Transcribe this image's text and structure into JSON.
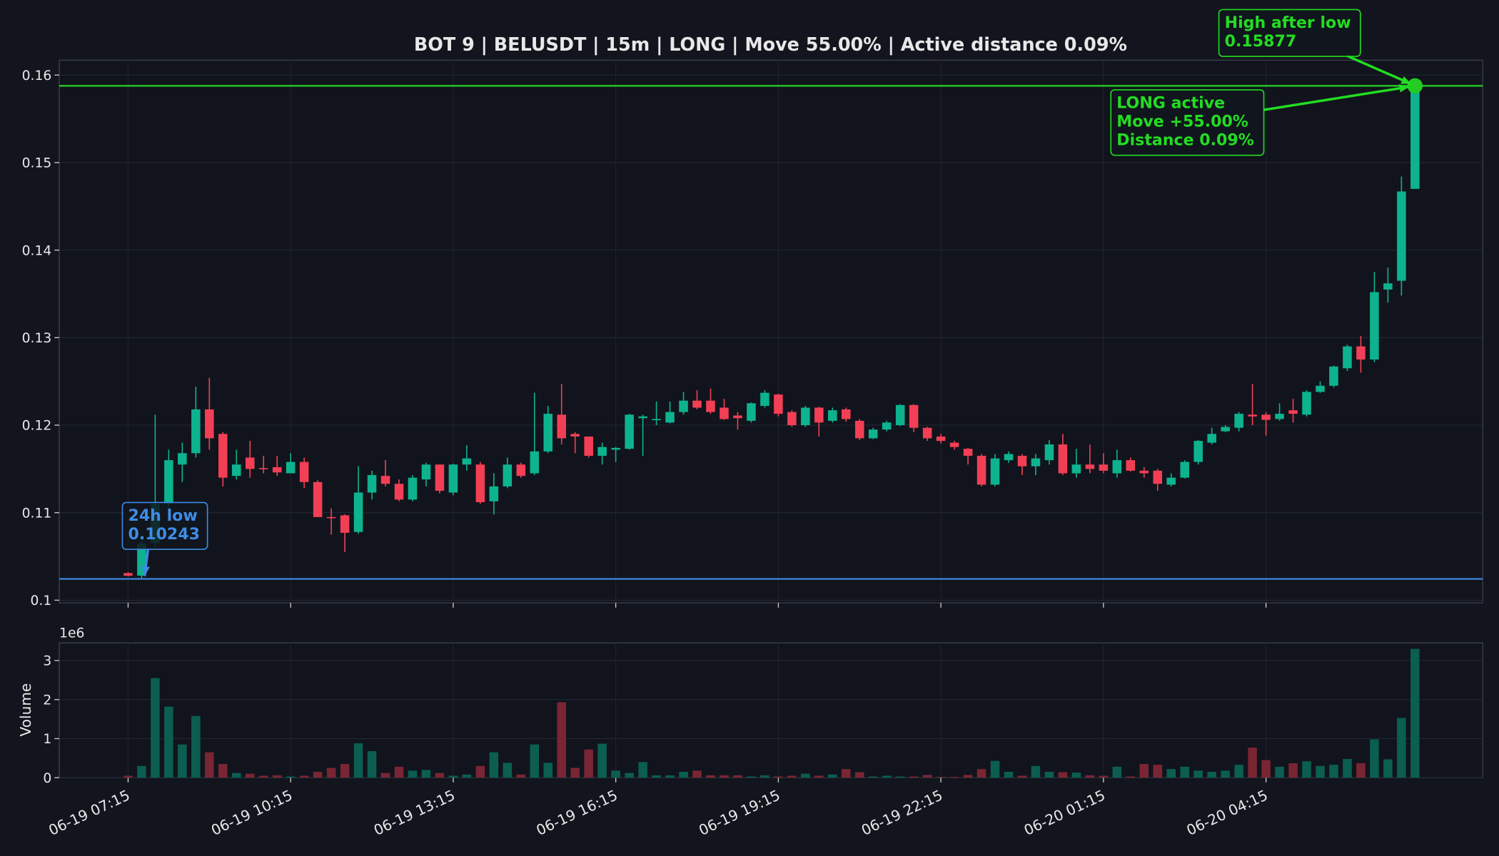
{
  "chart_data": {
    "type": "candlestick",
    "title": "BOT 9 | BELUSDT | 15m | LONG | Move 55.00% | Active distance 0.09%",
    "categories": [
      "06-19 07:15",
      null,
      null,
      null,
      null,
      null,
      null,
      null,
      null,
      null,
      null,
      null,
      "06-19 10:15",
      null,
      null,
      null,
      null,
      null,
      null,
      null,
      null,
      null,
      null,
      null,
      "06-19 13:15",
      null,
      null,
      null,
      null,
      null,
      null,
      null,
      null,
      null,
      null,
      null,
      "06-19 16:15",
      null,
      null,
      null,
      null,
      null,
      null,
      null,
      null,
      null,
      null,
      null,
      "06-19 19:15",
      null,
      null,
      null,
      null,
      null,
      null,
      null,
      null,
      null,
      null,
      null,
      "06-19 22:15",
      null,
      null,
      null,
      null,
      null,
      null,
      null,
      null,
      null,
      null,
      null,
      "06-20 01:15",
      null,
      null,
      null,
      null,
      null,
      null,
      null,
      null,
      null,
      null,
      null,
      "06-20 04:15",
      null,
      null,
      null,
      null,
      null,
      null,
      null,
      null,
      null,
      null,
      null
    ],
    "open": [
      0.1031,
      0.1028,
      0.1065,
      0.111,
      0.1155,
      0.1168,
      0.1218,
      0.119,
      0.1142,
      0.1163,
      0.1151,
      0.1152,
      0.1145,
      0.1158,
      0.1135,
      0.1095,
      0.1097,
      0.1078,
      0.1123,
      0.1142,
      0.1133,
      0.1115,
      0.1138,
      0.1155,
      0.1123,
      0.1155,
      0.1155,
      0.1113,
      0.113,
      0.1155,
      0.1145,
      0.117,
      0.1212,
      0.119,
      0.1187,
      0.1165,
      0.1172,
      0.1173,
      0.1208,
      0.1206,
      0.1203,
      0.1215,
      0.1228,
      0.1228,
      0.122,
      0.1211,
      0.1205,
      0.1222,
      0.1235,
      0.1215,
      0.12,
      0.122,
      0.1205,
      0.1218,
      0.1205,
      0.1185,
      0.1195,
      0.12,
      0.1223,
      0.1197,
      0.1187,
      0.118,
      0.1173,
      0.1165,
      0.1132,
      0.116,
      0.1165,
      0.1153,
      0.116,
      0.1178,
      0.1145,
      0.1155,
      0.1155,
      0.1145,
      0.116,
      0.1148,
      0.1148,
      0.1132,
      0.114,
      0.1158,
      0.118,
      0.1193,
      0.1197,
      0.1212,
      0.1212,
      0.1207,
      0.1217,
      0.1212,
      0.1238,
      0.1245,
      0.1265,
      0.129,
      0.1275,
      0.1355,
      0.1365,
      0.147
    ],
    "high": [
      0.1032,
      0.1068,
      0.1212,
      0.1172,
      0.118,
      0.1244,
      0.1254,
      0.1192,
      0.1172,
      0.1182,
      0.1165,
      0.1165,
      0.1168,
      0.1163,
      0.1137,
      0.1105,
      0.1098,
      0.1153,
      0.1148,
      0.116,
      0.1138,
      0.1143,
      0.1157,
      0.1155,
      0.1156,
      0.1177,
      0.1158,
      0.1145,
      0.1163,
      0.1157,
      0.1237,
      0.1222,
      0.1247,
      0.1192,
      0.1187,
      0.118,
      0.1175,
      0.1213,
      0.1212,
      0.1227,
      0.1227,
      0.1238,
      0.124,
      0.1242,
      0.123,
      0.1215,
      0.1226,
      0.124,
      0.1236,
      0.1217,
      0.1222,
      0.1221,
      0.122,
      0.122,
      0.1207,
      0.1197,
      0.1205,
      0.1224,
      0.1224,
      0.1198,
      0.119,
      0.1182,
      0.1174,
      0.1167,
      0.1167,
      0.117,
      0.1167,
      0.1167,
      0.1183,
      0.119,
      0.1173,
      0.1178,
      0.1168,
      0.1172,
      0.1163,
      0.1152,
      0.115,
      0.1145,
      0.116,
      0.1183,
      0.1197,
      0.12,
      0.1215,
      0.1247,
      0.1215,
      0.1225,
      0.123,
      0.124,
      0.125,
      0.1268,
      0.1292,
      0.1302,
      0.1375,
      0.138,
      0.1484,
      0.15877
    ],
    "low": [
      0.1027,
      0.10243,
      0.106,
      0.1105,
      0.1135,
      0.1163,
      0.1172,
      0.113,
      0.1138,
      0.114,
      0.1145,
      0.1142,
      0.1145,
      0.1128,
      0.1095,
      0.1075,
      0.1055,
      0.1076,
      0.1115,
      0.113,
      0.1113,
      0.1113,
      0.113,
      0.1122,
      0.112,
      0.1148,
      0.111,
      0.1098,
      0.1128,
      0.114,
      0.1143,
      0.1168,
      0.1178,
      0.1168,
      0.1163,
      0.1155,
      0.1158,
      0.1172,
      0.1165,
      0.12,
      0.1202,
      0.1212,
      0.1218,
      0.1213,
      0.1206,
      0.1195,
      0.1203,
      0.122,
      0.121,
      0.1198,
      0.1198,
      0.1187,
      0.1203,
      0.1204,
      0.1183,
      0.1184,
      0.1193,
      0.1199,
      0.1192,
      0.1182,
      0.1179,
      0.1172,
      0.1155,
      0.113,
      0.113,
      0.1157,
      0.1143,
      0.1143,
      0.1155,
      0.1143,
      0.114,
      0.1145,
      0.1145,
      0.114,
      0.1147,
      0.114,
      0.1125,
      0.113,
      0.1139,
      0.1155,
      0.1178,
      0.1192,
      0.1193,
      0.12,
      0.1188,
      0.1205,
      0.1203,
      0.121,
      0.1237,
      0.1243,
      0.1262,
      0.126,
      0.1272,
      0.134,
      0.1348,
      0.147
    ],
    "close": [
      0.1028,
      0.1065,
      0.111,
      0.116,
      0.1168,
      0.1218,
      0.1185,
      0.114,
      0.1155,
      0.115,
      0.115,
      0.1146,
      0.1158,
      0.1135,
      0.1095,
      0.1094,
      0.1077,
      0.1123,
      0.1143,
      0.1133,
      0.1115,
      0.114,
      0.1155,
      0.1125,
      0.1155,
      0.1162,
      0.1112,
      0.113,
      0.1155,
      0.1142,
      0.117,
      0.1213,
      0.1185,
      0.1187,
      0.1165,
      0.1175,
      0.1174,
      0.1212,
      0.121,
      0.1207,
      0.1215,
      0.1228,
      0.122,
      0.1215,
      0.1207,
      0.1208,
      0.1225,
      0.1237,
      0.1213,
      0.12,
      0.122,
      0.1203,
      0.1217,
      0.1207,
      0.1185,
      0.1195,
      0.1203,
      0.1223,
      0.1197,
      0.1185,
      0.1182,
      0.1175,
      0.1165,
      0.1132,
      0.1162,
      0.1167,
      0.1153,
      0.1162,
      0.1178,
      0.1145,
      0.1155,
      0.115,
      0.1148,
      0.116,
      0.1148,
      0.1145,
      0.1133,
      0.114,
      0.1158,
      0.1182,
      0.119,
      0.1198,
      0.1213,
      0.121,
      0.1206,
      0.1213,
      0.1213,
      0.1238,
      0.1245,
      0.1267,
      0.129,
      0.1275,
      0.1352,
      0.1362,
      0.1467,
      0.15877
    ],
    "up_color": "#0db38f",
    "down_color": "#f23f55",
    "xlim": [
      -5.08,
      100.0
    ],
    "ylim": [
      0.0997,
      0.1617
    ],
    "yticks": [
      0.1,
      0.11,
      0.12,
      0.13,
      0.14,
      0.15,
      0.16
    ],
    "grid": true,
    "levels": [
      {
        "value": 0.10243,
        "color": "#3d7fd6"
      },
      {
        "value": 0.15877,
        "color": "#22cc22"
      }
    ],
    "annotations": [
      {
        "lines": [
          "High after low",
          "0.15877"
        ],
        "color": "#22dd22"
      },
      {
        "lines": [
          "LONG active",
          "Move +55.00%",
          "Distance 0.09%"
        ],
        "color": "#22dd22"
      },
      {
        "lines": [
          "24h low",
          "0.10243"
        ],
        "color": "#3d8ce6"
      }
    ],
    "volume": {
      "ylabel": "Volume",
      "offset_text": "1e6",
      "values": [
        0.05,
        0.3,
        2.55,
        1.82,
        0.85,
        1.58,
        0.65,
        0.35,
        0.12,
        0.1,
        0.05,
        0.06,
        0.03,
        0.05,
        0.15,
        0.25,
        0.35,
        0.88,
        0.68,
        0.12,
        0.28,
        0.18,
        0.2,
        0.12,
        0.05,
        0.08,
        0.3,
        0.65,
        0.38,
        0.08,
        0.85,
        0.38,
        1.93,
        0.25,
        0.72,
        0.87,
        0.18,
        0.12,
        0.4,
        0.06,
        0.06,
        0.15,
        0.18,
        0.06,
        0.06,
        0.06,
        0.03,
        0.06,
        0.03,
        0.05,
        0.1,
        0.05,
        0.08,
        0.22,
        0.14,
        0.03,
        0.05,
        0.03,
        0.03,
        0.07,
        0.02,
        0.02,
        0.07,
        0.22,
        0.43,
        0.15,
        0.05,
        0.3,
        0.15,
        0.14,
        0.13,
        0.06,
        0.05,
        0.28,
        0.03,
        0.35,
        0.33,
        0.22,
        0.28,
        0.18,
        0.15,
        0.18,
        0.33,
        0.77,
        0.45,
        0.28,
        0.37,
        0.42,
        0.3,
        0.33,
        0.48,
        0.37,
        0.98,
        0.47,
        1.53,
        3.3
      ],
      "up_color": "#0b5e50",
      "down_color": "#7a2533",
      "ylim": [
        0,
        3.45
      ],
      "yticks": [
        0,
        1,
        2,
        3
      ]
    }
  }
}
